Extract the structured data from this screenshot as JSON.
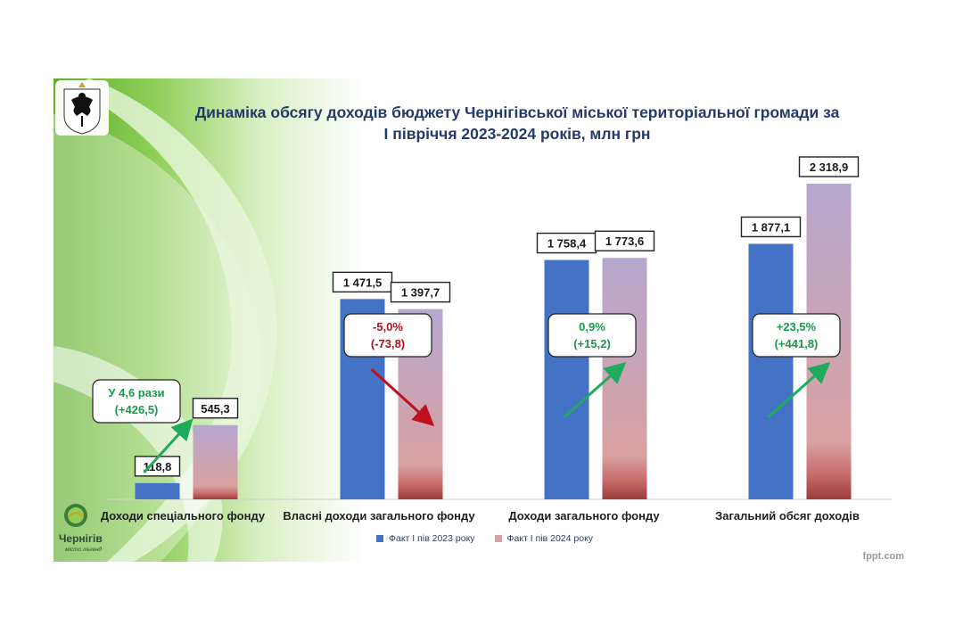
{
  "title_line1": "Динаміка обсягу доходів  бюджету Чернігівської міської територіальної громади за",
  "title_line2": "І півріччя 2023-2024 років, млн грн",
  "city_logo": {
    "name": "Чернігів",
    "slogan": "місто легенд"
  },
  "watermark": "fppt.com",
  "colors": {
    "series_2023": "#4472c4",
    "series_2024_top": "#b6a7cf",
    "series_2024_bottom": "#9c3b3b",
    "up_arrow": "#1faa5c",
    "down_arrow": "#c0101e",
    "up_text": "#1a9a4a",
    "down_text": "#b0101e"
  },
  "chart_data": {
    "type": "bar",
    "categories": [
      "Доходи спеціального фонду",
      "Власні доходи загального фонду",
      "Доходи загального фонду",
      "Загальний обсяг доходів"
    ],
    "series": [
      {
        "name": "Факт І пів 2023 року",
        "values": [
          118.8,
          1471.5,
          1758.4,
          1877.1
        ],
        "labels": [
          "118,8",
          "1 471,5",
          "1 758,4",
          "1 877,1"
        ]
      },
      {
        "name": "Факт І пів 2024 року",
        "values": [
          545.3,
          1397.7,
          1773.6,
          2318.9
        ],
        "labels": [
          "545,3",
          "1 397,7",
          "1 773,6",
          "2 318,9"
        ]
      }
    ],
    "annotations": [
      {
        "line1": "У 4,6 рази",
        "line2": "(+426,5)",
        "direction": "up"
      },
      {
        "line1": "-5,0%",
        "line2": "(-73,8)",
        "direction": "down"
      },
      {
        "line1": "0,9%",
        "line2": "(+15,2)",
        "direction": "up"
      },
      {
        "line1": "+23,5%",
        "line2": "(+441,8)",
        "direction": "up"
      }
    ],
    "ylim": [
      0,
      2318.9
    ],
    "legend_position": "bottom",
    "grid": false
  }
}
